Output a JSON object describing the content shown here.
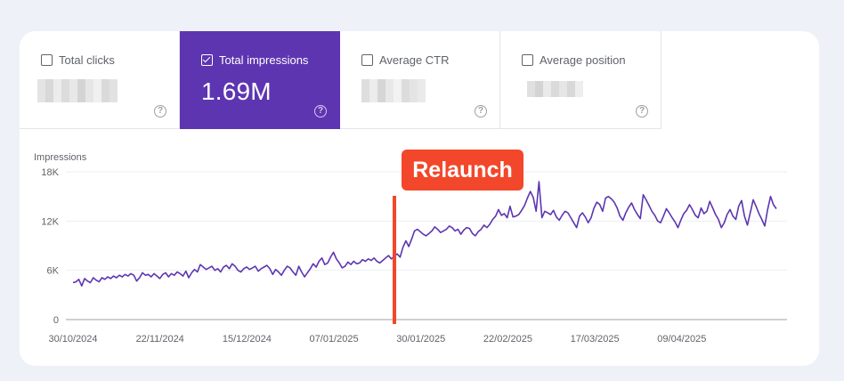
{
  "metrics": [
    {
      "label": "Total clicks",
      "value": "",
      "checked": false,
      "active": false
    },
    {
      "label": "Total impressions",
      "value": "1.69M",
      "checked": true,
      "active": true
    },
    {
      "label": "Average CTR",
      "value": "",
      "checked": false,
      "active": false
    },
    {
      "label": "Average position",
      "value": "",
      "checked": false,
      "active": false
    }
  ],
  "help_icon_glyph": "?",
  "annotation": {
    "label": "Relaunch",
    "color": "#f2472a"
  },
  "chart_data": {
    "type": "line",
    "title": "",
    "ylabel": "Impressions",
    "xlabel": "",
    "ylim": [
      0,
      18000
    ],
    "y_ticks": [
      0,
      6000,
      12000,
      18000
    ],
    "y_tick_labels": [
      "0",
      "6K",
      "12K",
      "18K"
    ],
    "x_tick_labels": [
      "30/10/2024",
      "22/11/2024",
      "15/12/2024",
      "07/01/2025",
      "30/01/2025",
      "22/02/2025",
      "17/03/2025",
      "09/04/2025"
    ],
    "grid": true,
    "line_color": "#5e35b1",
    "marker_line": {
      "label": "Relaunch",
      "date": "2025-01-23",
      "color": "#f2472a"
    },
    "series": [
      {
        "x_start": "2024-10-30",
        "x_end": "2025-05-04",
        "values": [
          4500,
          4600,
          4900,
          4100,
          5000,
          4700,
          4500,
          5100,
          4800,
          4600,
          5100,
          4900,
          5200,
          5000,
          5300,
          5100,
          5400,
          5200,
          5500,
          5300,
          5600,
          5400,
          4700,
          5100,
          5700,
          5400,
          5500,
          5200,
          5600,
          5300,
          5000,
          5500,
          5700,
          5200,
          5600,
          5400,
          5800,
          5600,
          5300,
          5900,
          5100,
          5700,
          6100,
          5800,
          6700,
          6400,
          6100,
          6300,
          6500,
          6000,
          6200,
          5800,
          6400,
          6600,
          6200,
          6800,
          6500,
          6000,
          5800,
          6200,
          6400,
          6100,
          6300,
          6500,
          5900,
          6200,
          6400,
          6600,
          6200,
          5500,
          6100,
          5800,
          5400,
          6000,
          6500,
          6300,
          5800,
          5400,
          6500,
          5800,
          5200,
          5700,
          6200,
          6800,
          6400,
          7100,
          7500,
          6700,
          6900,
          7600,
          8200,
          7400,
          6900,
          6300,
          6500,
          7000,
          6700,
          7100,
          6800,
          6900,
          7300,
          7100,
          7400,
          7200,
          7500,
          7100,
          6900,
          7200,
          7500,
          7800,
          7400,
          7700,
          8000,
          7600
        ],
        "relaunch_values": [
          8800,
          9600,
          8900,
          9800,
          10800,
          11000,
          10700,
          10400,
          10200,
          10500,
          10800,
          11300,
          11000,
          10600,
          10800,
          11000,
          11400,
          11200,
          10800,
          11000,
          10400,
          10900,
          11200,
          11100,
          10500,
          10200,
          10700,
          11000,
          11500,
          11200,
          11600,
          12200,
          12600,
          13400,
          12700,
          12900,
          12400,
          13800,
          12500,
          12600,
          12800,
          13300,
          13900,
          14800,
          15600,
          14900,
          13200,
          16800,
          12400,
          13200,
          13000,
          12800,
          13300,
          12500,
          12100,
          12700,
          13200,
          13000,
          12400,
          11800,
          11200,
          12600,
          13000,
          12500,
          11800,
          12400,
          13600,
          14300,
          14000,
          13200,
          14800,
          15000,
          14700,
          14300,
          13600,
          12600,
          12100,
          13000,
          13700,
          14200,
          13400,
          12800,
          12300,
          15200,
          14600,
          13900,
          13200,
          12700,
          12000,
          11800,
          12600,
          13500,
          13000,
          12400,
          11900,
          11200,
          12100,
          12900,
          13300,
          14000,
          13400,
          12700,
          12400,
          13600,
          12900,
          13200,
          14400,
          13600,
          12800,
          12200,
          11200,
          11800,
          12800,
          13400,
          12600,
          12200,
          13800,
          14500,
          12600,
          11500,
          13000,
          14600,
          13800,
          12900,
          12200,
          11400,
          13400,
          15000,
          14000,
          13500
        ]
      }
    ]
  }
}
